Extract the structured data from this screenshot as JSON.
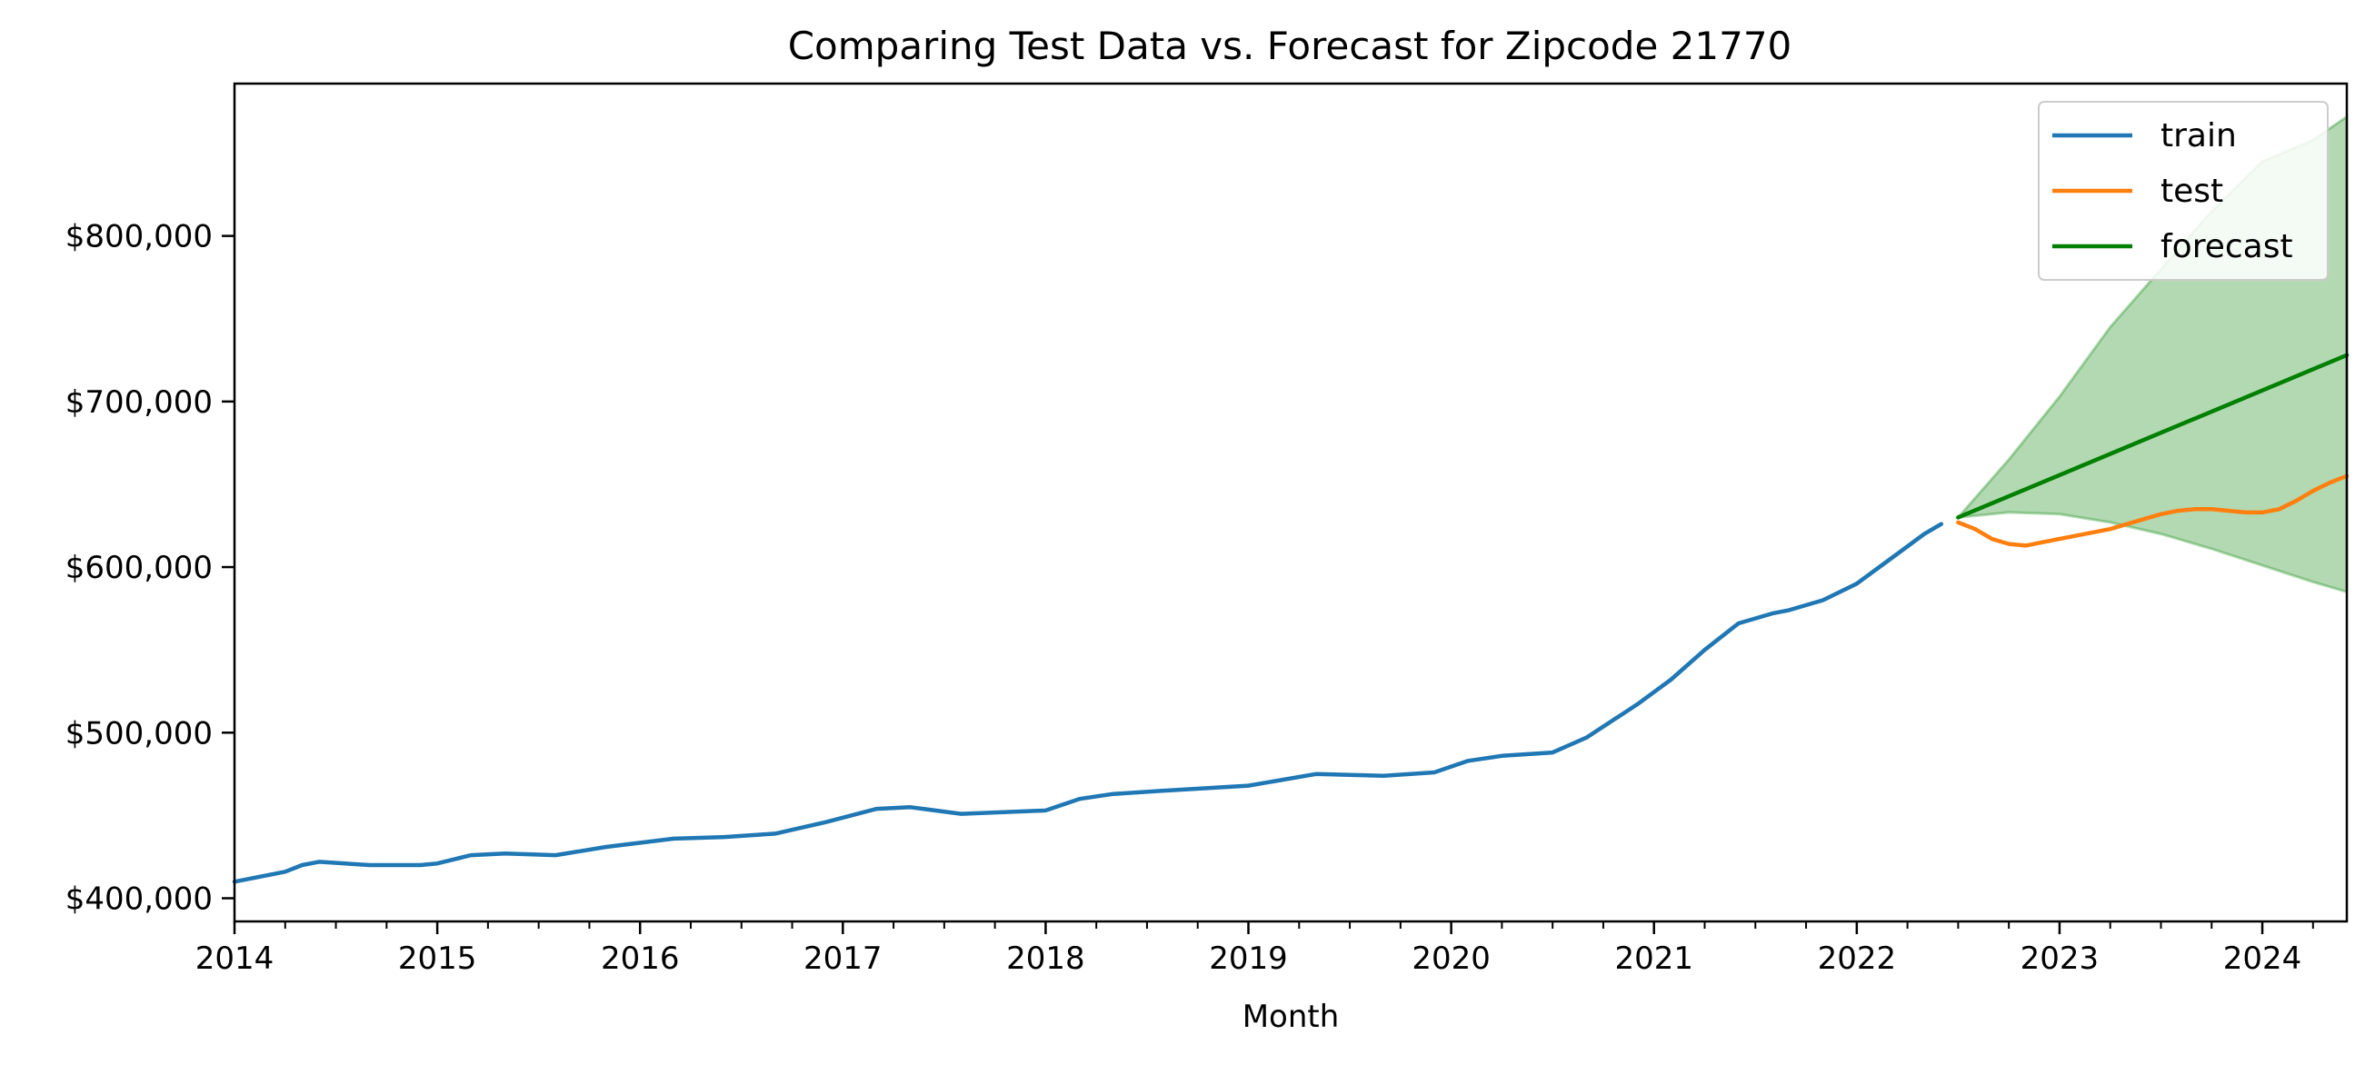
{
  "chart_data": {
    "type": "line",
    "title": "Comparing Test Data vs. Forecast for Zipcode 21770",
    "xlabel": "Month",
    "ylabel": "",
    "xlim": [
      "2014-01",
      "2024-06"
    ],
    "ylim": [
      386000,
      892000
    ],
    "x_ticks": [
      "2014",
      "2015",
      "2016",
      "2017",
      "2018",
      "2019",
      "2020",
      "2021",
      "2022",
      "2023",
      "2024"
    ],
    "y_ticks": [
      {
        "value": 400000,
        "label": "$400,000"
      },
      {
        "value": 500000,
        "label": "$500,000"
      },
      {
        "value": 600000,
        "label": "$600,000"
      },
      {
        "value": 700000,
        "label": "$700,000"
      },
      {
        "value": 800000,
        "label": "$800,000"
      }
    ],
    "grid": false,
    "legend_position": "top-right",
    "series": [
      {
        "name": "train",
        "color": "#1f77b4",
        "x": [
          "2014-01",
          "2014-04",
          "2014-05",
          "2014-06",
          "2014-09",
          "2014-12",
          "2015-01",
          "2015-03",
          "2015-05",
          "2015-08",
          "2015-11",
          "2016-03",
          "2016-06",
          "2016-09",
          "2016-12",
          "2017-03",
          "2017-05",
          "2017-08",
          "2018-01",
          "2018-03",
          "2018-05",
          "2018-08",
          "2019-01",
          "2019-05",
          "2019-09",
          "2019-12",
          "2020-02",
          "2020-04",
          "2020-07",
          "2020-09",
          "2020-12",
          "2021-02",
          "2021-04",
          "2021-06",
          "2021-08",
          "2021-09",
          "2021-11",
          "2022-01",
          "2022-03",
          "2022-05",
          "2022-06"
        ],
        "values": [
          410000,
          416000,
          420000,
          422000,
          420000,
          420000,
          421000,
          426000,
          427000,
          426000,
          431000,
          436000,
          437000,
          439000,
          446000,
          454000,
          455000,
          451000,
          453000,
          460000,
          463000,
          465000,
          468000,
          475000,
          474000,
          476000,
          483000,
          486000,
          488000,
          497000,
          517000,
          532000,
          550000,
          566000,
          572000,
          574000,
          580000,
          590000,
          605000,
          620000,
          626000
        ]
      },
      {
        "name": "test",
        "color": "#ff7f0e",
        "x": [
          "2022-07",
          "2022-08",
          "2022-09",
          "2022-10",
          "2022-11",
          "2022-12",
          "2023-01",
          "2023-02",
          "2023-03",
          "2023-04",
          "2023-05",
          "2023-06",
          "2023-07",
          "2023-08",
          "2023-09",
          "2023-10",
          "2023-11",
          "2023-12",
          "2024-01",
          "2024-02",
          "2024-03",
          "2024-04",
          "2024-05",
          "2024-06"
        ],
        "values": [
          627000,
          623000,
          617000,
          614000,
          613000,
          615000,
          617000,
          619000,
          621000,
          623000,
          626000,
          629000,
          632000,
          634000,
          635000,
          635000,
          634000,
          633000,
          633000,
          635000,
          640000,
          646000,
          651000,
          655000
        ]
      },
      {
        "name": "forecast",
        "color": "#008000",
        "x": [
          "2022-07",
          "2024-06"
        ],
        "values": [
          630000,
          728000
        ]
      }
    ],
    "confidence_band": {
      "color": "#008000",
      "x": [
        "2022-07",
        "2022-10",
        "2023-01",
        "2023-04",
        "2023-07",
        "2023-10",
        "2024-01",
        "2024-04",
        "2024-06"
      ],
      "lower": [
        630000,
        633000,
        632000,
        627000,
        620000,
        611000,
        601000,
        591000,
        585000
      ],
      "upper": [
        630000,
        665000,
        703000,
        745000,
        780000,
        815000,
        845000,
        858000,
        872000
      ]
    }
  }
}
